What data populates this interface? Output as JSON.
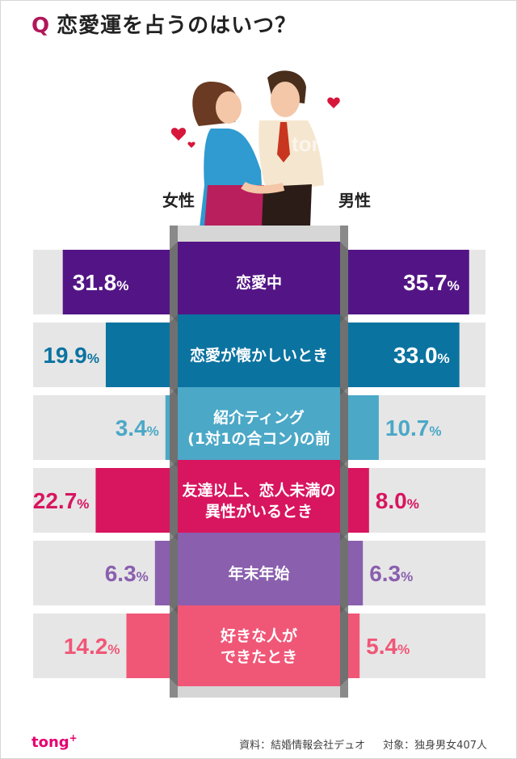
{
  "header": {
    "q_label": "Q",
    "question": "恋愛運を占うのはいつ？"
  },
  "legend": {
    "left": "女性",
    "right": "男性"
  },
  "watermark": "tong",
  "watermark_sup": "+",
  "footer": {
    "logo": "tong",
    "logo_sup": "+",
    "source": "資料：結婚情報会社デュオ",
    "target": "対象：独身男女407人"
  },
  "chart_data": {
    "type": "bar",
    "orientation": "horizontal-diverging",
    "categories": [
      "恋愛中",
      "恋愛が懐かしいとき",
      "紹介ティング\n(1対1の合コン)の前",
      "友達以上、恋人未満の\n異性がいるとき",
      "年末年始",
      "好きな人が\nできたとき"
    ],
    "series": [
      {
        "name": "女性",
        "values": [
          31.8,
          19.9,
          3.4,
          22.7,
          6.3,
          14.2
        ]
      },
      {
        "name": "男性",
        "values": [
          35.7,
          33.0,
          10.7,
          8.0,
          6.3,
          5.4
        ]
      }
    ],
    "value_labels_left": [
      "31.8",
      "19.9",
      "3.4",
      "22.7",
      "6.3",
      "14.2"
    ],
    "value_labels_right": [
      "35.7",
      "33.0",
      "10.7",
      "8.0",
      "6.3",
      "5.4"
    ],
    "unit": "%",
    "colors": [
      "#531585",
      "#0b73a0",
      "#4ba8c7",
      "#d8155f",
      "#8a5fae",
      "#f05777"
    ],
    "max_value": 40
  }
}
